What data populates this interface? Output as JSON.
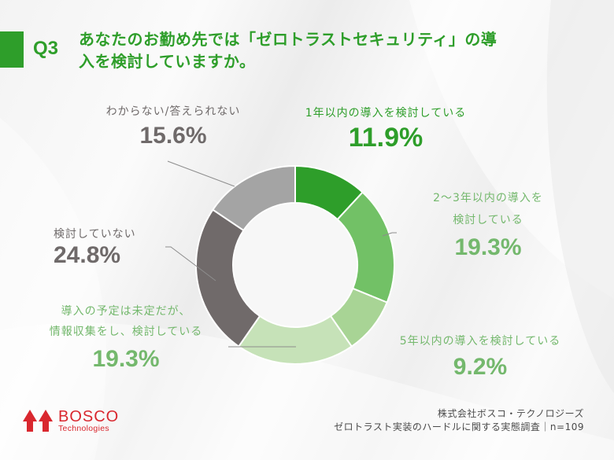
{
  "header": {
    "question_number": "Q3",
    "title_line1": "あなたのお勤め先では「ゼロトラストセキュリティ」の導",
    "title_line2": "入を検討していますか。",
    "accent_color": "#2e9e2a"
  },
  "labels": {
    "within_1_year": {
      "category": "1年以内の導入を検討している",
      "percent": "11.9%"
    },
    "within_2_3_years": {
      "category_line1": "2～3年以内の導入を",
      "category_line2": "検討している",
      "percent": "19.3%"
    },
    "within_5_years": {
      "category": "5年以内の導入を検討している",
      "percent": "9.2%"
    },
    "undecided_gathering": {
      "category_line1": "導入の予定は未定だが、",
      "category_line2": "情報収集をし、検討している",
      "percent": "19.3%"
    },
    "not_considering": {
      "category": "検討していない",
      "percent": "24.8%"
    },
    "dont_know": {
      "category": "わからない/答えられない",
      "percent": "15.6%"
    }
  },
  "chart_data": {
    "type": "pie",
    "subtype": "donut",
    "title": "あなたのお勤め先では「ゼロトラストセキュリティ」の導入を検討していますか。",
    "categories": [
      "1年以内の導入を検討している",
      "2～3年以内の導入を検討している",
      "5年以内の導入を検討している",
      "導入の予定は未定だが、情報収集をし、検討している",
      "検討していない",
      "わからない/答えられない"
    ],
    "values": [
      11.9,
      19.3,
      9.2,
      19.3,
      24.8,
      15.6
    ],
    "colors": [
      "#2e9e2a",
      "#72c166",
      "#a8d495",
      "#c6e2b8",
      "#706a6a",
      "#a4a4a4"
    ],
    "unit": "%",
    "start_angle_deg": 0,
    "direction": "clockwise",
    "n": 109
  },
  "logo": {
    "brand": "BOSCO",
    "sub": "Technologies",
    "color": "#d9272e"
  },
  "footer": {
    "line1": "株式会社ボスコ・テクノロジーズ",
    "line2": "ゼロトラスト実装のハードルに関する実態調査｜n=109"
  }
}
